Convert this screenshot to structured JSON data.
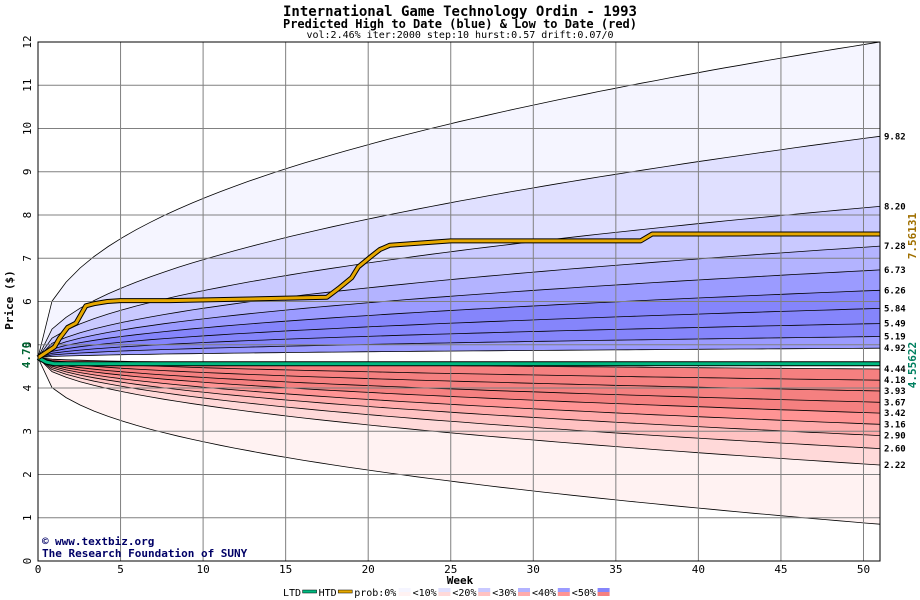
{
  "chart_data": {
    "type": "area",
    "title": "International Game Technology Ordin - 1993",
    "subtitle": "Predicted High to Date (blue) &  Low to Date (red)",
    "params": "vol:2.46% iter:2000 step:10 hurst:0.57 drift:0.07/0",
    "xlabel": "Week",
    "ylabel": "Price ($)",
    "xlim": [
      0,
      51
    ],
    "ylim": [
      0,
      12
    ],
    "x_ticks": [
      "0",
      "5",
      "10",
      "15",
      "20",
      "25",
      "30",
      "35",
      "40",
      "45",
      "50"
    ],
    "y_ticks": [
      "0",
      "1",
      "2",
      "3",
      "4",
      "5",
      "6",
      "7",
      "8",
      "9",
      "10",
      "11",
      "12"
    ],
    "start_price": 4.7,
    "start_label": "4.70",
    "grid": true,
    "envelope_upper_end": 12,
    "envelope_lower_end": 0.85,
    "high_quantiles": [
      9.82,
      8.2,
      7.28,
      6.73,
      6.26,
      5.84,
      5.49,
      5.19,
      4.92
    ],
    "high_labels": [
      "9.82",
      "8.20",
      "7.28",
      "6.73",
      "6.26",
      "5.84",
      "5.49",
      "5.19",
      "4.92"
    ],
    "low_quantiles": [
      4.44,
      4.18,
      3.93,
      3.67,
      3.42,
      3.16,
      2.9,
      2.6,
      2.22
    ],
    "low_labels": [
      "4.44",
      "4.18",
      "3.93",
      "3.67",
      "3.42",
      "3.16",
      "2.90",
      "2.60",
      "2.22"
    ],
    "htd_series": {
      "name": "HTD",
      "label": "7.56131",
      "x": [
        0,
        1,
        1.3,
        1.8,
        2.3,
        2.9,
        3.4,
        4.2,
        5,
        8,
        12,
        17.5,
        18.2,
        19,
        19.4,
        20.2,
        20.7,
        21.3,
        25,
        36.5,
        37.2,
        51
      ],
      "y": [
        4.7,
        4.95,
        5.15,
        5.4,
        5.5,
        5.9,
        5.95,
        6.0,
        6.02,
        6.02,
        6.05,
        6.1,
        6.3,
        6.55,
        6.8,
        7.05,
        7.2,
        7.3,
        7.4,
        7.4,
        7.56,
        7.56
      ]
    },
    "ltd_series": {
      "name": "LTD",
      "label": "4.55622",
      "x": [
        0,
        0.5,
        1,
        51
      ],
      "y": [
        4.7,
        4.6,
        4.56,
        4.56
      ]
    },
    "colors": {
      "blue_bands": [
        "#f5f5ff",
        "#e0e0ff",
        "#c9c9ff",
        "#b3b3ff",
        "#9b9bff",
        "#8585fb"
      ],
      "red_bands": [
        "#fff2f2",
        "#ffd9d9",
        "#ffc2c2",
        "#ffabab",
        "#ff9494",
        "#f58080"
      ],
      "htd": "#e6a800",
      "ltd": "#00b980",
      "htd_label": "#a07000",
      "ltd_label": "#008060"
    },
    "legend": {
      "items": [
        "LTD",
        "HTD",
        "prob:0%",
        "<10%",
        "<20%",
        "<30%",
        "<40%",
        "<50%"
      ]
    },
    "credit_lines": [
      "www.textbiz.org",
      "The Research Foundation of SUNY"
    ],
    "copyright_symbol": "©"
  }
}
